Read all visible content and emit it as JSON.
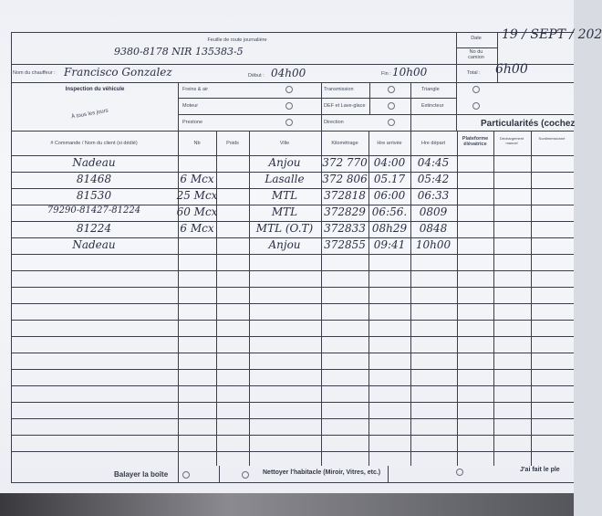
{
  "form": {
    "title": "Feuille de route journalière",
    "truck_plate_handwritten": "9380-8178  NIR 135383-5",
    "date_label": "Date",
    "date_value": "19 / SEPT / 202",
    "truck_no_label": "No du camion",
    "driver_label": "Nom du chauffeur :",
    "driver_value": "Francisco Gonzalez",
    "start_label": "Début :",
    "start_value": "04h00",
    "end_label": "Fin :",
    "end_value": "10h00",
    "total_label": "Total :",
    "total_value": "6h00"
  },
  "inspection": {
    "title": "Inspection du véhicule",
    "subtitle": "À tous les jours",
    "items": [
      "Freins & air",
      "Moteur",
      "Prestone",
      "Transmission",
      "DEF et Lave-glace",
      "Direction",
      "Triangle",
      "Extincteur"
    ],
    "particularites": "Particularités (cochez"
  },
  "table": {
    "headers": [
      "# Commande / Nom du client (si dédié)",
      "Nb",
      "Poids",
      "Ville",
      "Kilométrage",
      "Hre arrivée",
      "Hre départ",
      "Plateforme élévatrice",
      "Déchargement manuel",
      "Surdimensionné"
    ],
    "rows": [
      [
        "Nadeau",
        "",
        "",
        "Anjou",
        "372 770",
        "04:00",
        "04:45"
      ],
      [
        "81468",
        "6 Mcx",
        "",
        "Lasalle",
        "372 806",
        "05.17",
        "05:42"
      ],
      [
        "81530",
        "25 Mcx",
        "",
        "MTL",
        "372818",
        "06:00",
        "06:33"
      ],
      [
        "79290-81427-81224",
        "60 Mcx",
        "",
        "MTL",
        "372829",
        "06:56.",
        "0809"
      ],
      [
        "81224",
        "6 Mcx",
        "",
        "MTL (O.T)",
        "372833",
        "08h29",
        "0848"
      ],
      [
        "Nadeau",
        "",
        "",
        "Anjou",
        "372855",
        "09:41",
        "10h00"
      ]
    ]
  },
  "footer": {
    "sweep": "Balayer la boîte",
    "clean": "Nettoyer l'habitacle (Miroir, Vitres, etc.)",
    "fuel": "J'ai fait le ple"
  }
}
